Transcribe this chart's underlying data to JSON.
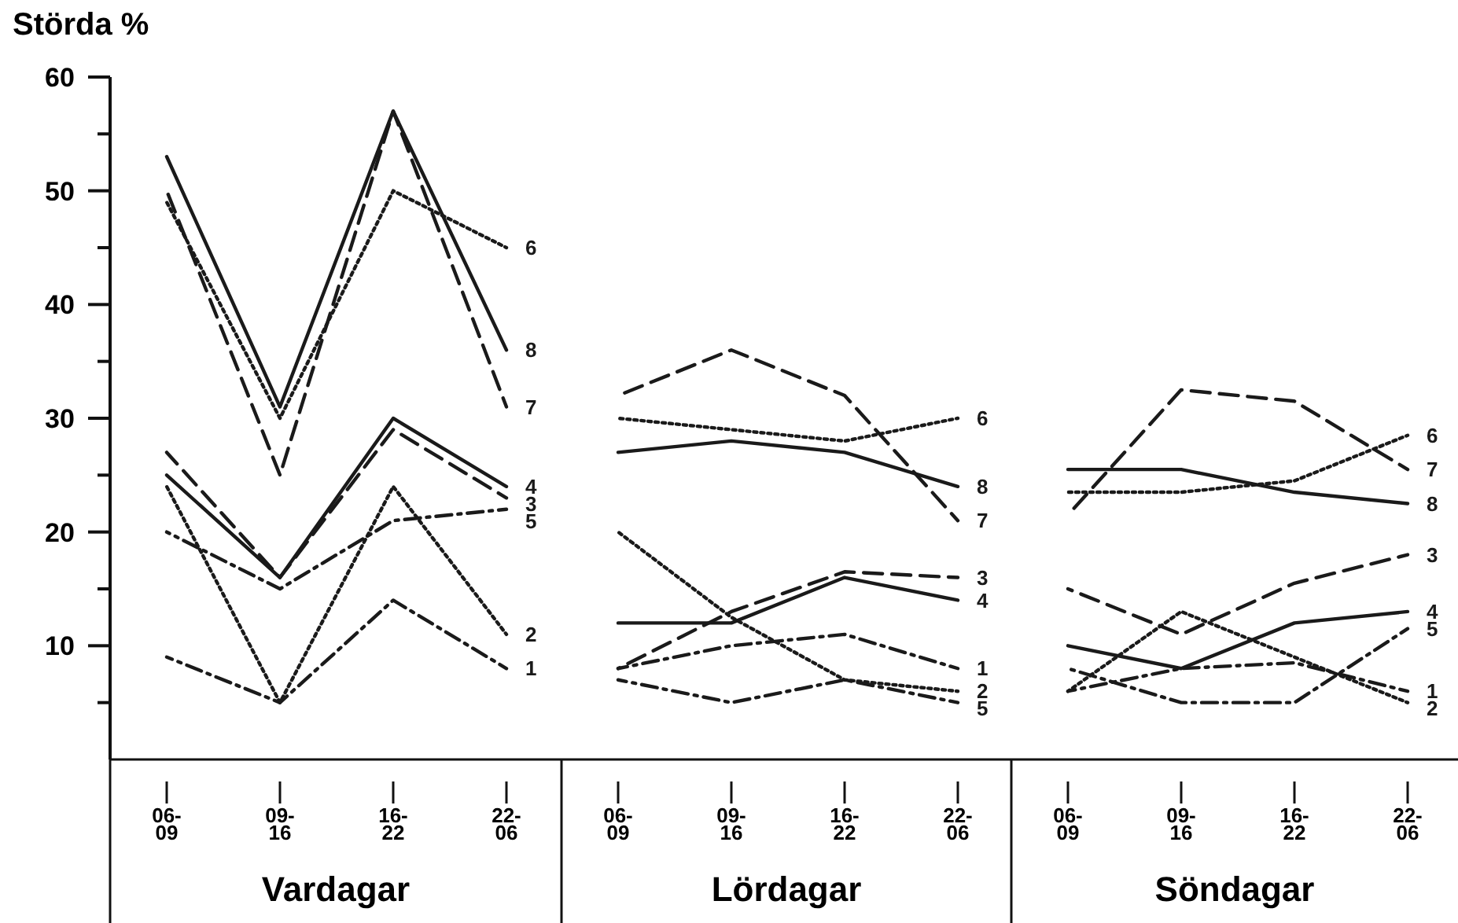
{
  "chart_data": [
    {
      "type": "line",
      "ylabel": "Störda %",
      "xlabel": "Vardagar",
      "categories": [
        "06-09",
        "09-16",
        "16-22",
        "22-06"
      ],
      "ylim": [
        0,
        60
      ],
      "yticks": [
        {
          "value": 5,
          "label": null
        },
        10,
        {
          "value": 15,
          "label": null
        },
        20,
        {
          "value": 25,
          "label": null
        },
        30,
        {
          "value": 35,
          "label": null
        },
        40,
        {
          "value": 45,
          "label": null
        },
        50,
        {
          "value": 55,
          "label": null
        },
        60
      ],
      "series": [
        {
          "name": "1",
          "color": "#1a1a1a",
          "line_style": "dashdot",
          "values": [
            9,
            5,
            14,
            8
          ]
        },
        {
          "name": "2",
          "color": "#1a1a1a",
          "line_style": "dotted",
          "values": [
            24,
            5,
            24,
            11
          ]
        },
        {
          "name": "3",
          "color": "#1a1a1a",
          "line_style": "dashed",
          "values": [
            27,
            16,
            29,
            23
          ]
        },
        {
          "name": "4",
          "color": "#1a1a1a",
          "line_style": "solid",
          "values": [
            25,
            16,
            30,
            24
          ]
        },
        {
          "name": "5",
          "color": "#1a1a1a",
          "line_style": "dashdot",
          "values": [
            20,
            15,
            21,
            22
          ]
        },
        {
          "name": "6",
          "color": "#1a1a1a",
          "line_style": "dotted",
          "values": [
            49,
            30,
            50,
            45
          ]
        },
        {
          "name": "7",
          "color": "#1a1a1a",
          "line_style": "dashed",
          "values": [
            50,
            25,
            57,
            31
          ]
        },
        {
          "name": "8",
          "color": "#1a1a1a",
          "line_style": "solid",
          "values": [
            53,
            31,
            57,
            36
          ]
        }
      ]
    },
    {
      "type": "line",
      "xlabel": "Lördagar",
      "categories": [
        "06-09",
        "09-16",
        "16-22",
        "22-06"
      ],
      "ylim": [
        0,
        60
      ],
      "tick_labels": "x",
      "series": [
        {
          "name": "1",
          "color": "#1a1a1a",
          "line_style": "dashdot",
          "values": [
            8,
            10,
            11,
            8
          ]
        },
        {
          "name": "2",
          "color": "#1a1a1a",
          "line_style": "dotted",
          "values": [
            20,
            12.5,
            7,
            6
          ]
        },
        {
          "name": "3",
          "color": "#1a1a1a",
          "line_style": "dashed",
          "values": [
            8,
            13,
            16.5,
            16
          ]
        },
        {
          "name": "4",
          "color": "#1a1a1a",
          "line_style": "solid",
          "values": [
            12,
            12,
            16,
            14
          ]
        },
        {
          "name": "5",
          "color": "#1a1a1a",
          "line_style": "dashdot",
          "values": [
            7,
            5,
            7,
            5
          ]
        },
        {
          "name": "6",
          "color": "#1a1a1a",
          "line_style": "dotted",
          "values": [
            30,
            29,
            28,
            30
          ]
        },
        {
          "name": "7",
          "color": "#1a1a1a",
          "line_style": "dashed",
          "values": [
            32,
            36,
            32,
            21
          ]
        },
        {
          "name": "8",
          "color": "#1a1a1a",
          "line_style": "solid",
          "values": [
            27,
            28,
            27,
            24
          ]
        }
      ]
    },
    {
      "type": "line",
      "xlabel": "Söndagar",
      "categories": [
        "06-09",
        "09-16",
        "16-22",
        "22-06"
      ],
      "ylim": [
        0,
        60
      ],
      "tick_labels": "x",
      "series": [
        {
          "name": "1",
          "color": "#1a1a1a",
          "line_style": "dashdot",
          "values": [
            6,
            8,
            8.5,
            6
          ]
        },
        {
          "name": "2",
          "color": "#1a1a1a",
          "line_style": "dotted",
          "values": [
            6,
            13,
            9,
            5
          ]
        },
        {
          "name": "3",
          "color": "#1a1a1a",
          "line_style": "dashed",
          "values": [
            15,
            11,
            15.5,
            18
          ]
        },
        {
          "name": "4",
          "color": "#1a1a1a",
          "line_style": "solid",
          "values": [
            10,
            8,
            12,
            13
          ]
        },
        {
          "name": "5",
          "color": "#1a1a1a",
          "line_style": "dashdot",
          "values": [
            8,
            5,
            5,
            11.5
          ]
        },
        {
          "name": "6",
          "color": "#1a1a1a",
          "line_style": "dotted",
          "values": [
            23.5,
            23.5,
            24.5,
            28.5
          ]
        },
        {
          "name": "7",
          "color": "#1a1a1a",
          "line_style": "dashed",
          "values": [
            21.5,
            32.5,
            31.5,
            25.5
          ]
        },
        {
          "name": "8",
          "color": "#1a1a1a",
          "line_style": "solid",
          "values": [
            25.5,
            25.5,
            23.5,
            22.5
          ]
        }
      ]
    }
  ]
}
